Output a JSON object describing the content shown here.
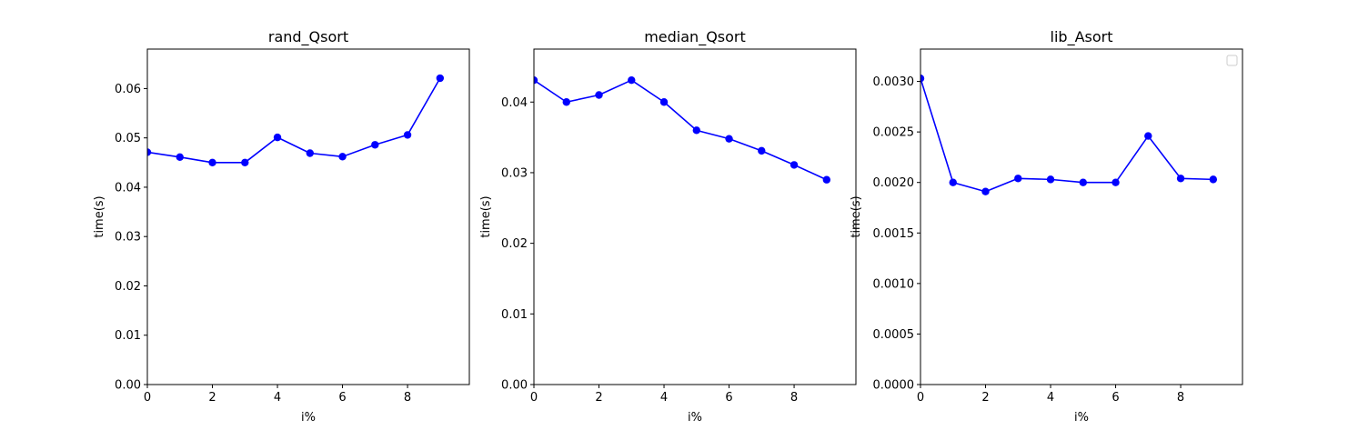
{
  "chart_data": [
    {
      "type": "line",
      "title": "rand_Qsort",
      "xlabel": "i%",
      "ylabel": "time(s)",
      "xlim": [
        0,
        9.9
      ],
      "ylim": [
        0,
        0.068
      ],
      "xticks": [
        0,
        2,
        4,
        6,
        8
      ],
      "xtick_labels": [
        "0",
        "2",
        "4",
        "6",
        "8"
      ],
      "yticks": [
        0,
        0.01,
        0.02,
        0.03,
        0.04,
        0.05,
        0.06
      ],
      "ytick_labels": [
        "0.00",
        "0.01",
        "0.02",
        "0.03",
        "0.04",
        "0.05",
        "0.06"
      ],
      "color": "#0000ff",
      "marker": "circle",
      "x": [
        0,
        1,
        2,
        3,
        4,
        5,
        6,
        7,
        8,
        9
      ],
      "y": [
        0.0471,
        0.0461,
        0.045,
        0.045,
        0.0501,
        0.0469,
        0.0462,
        0.0486,
        0.0506,
        0.0621
      ],
      "grid": false,
      "legend": false
    },
    {
      "type": "line",
      "title": "median_Qsort",
      "xlabel": "i%",
      "ylabel": "time(s)",
      "xlim": [
        0,
        9.9
      ],
      "ylim": [
        0,
        0.0475
      ],
      "xticks": [
        0,
        2,
        4,
        6,
        8
      ],
      "xtick_labels": [
        "0",
        "2",
        "4",
        "6",
        "8"
      ],
      "yticks": [
        0,
        0.01,
        0.02,
        0.03,
        0.04
      ],
      "ytick_labels": [
        "0.00",
        "0.01",
        "0.02",
        "0.03",
        "0.04"
      ],
      "color": "#0000ff",
      "marker": "circle",
      "x": [
        0,
        1,
        2,
        3,
        4,
        5,
        6,
        7,
        8,
        9
      ],
      "y": [
        0.0431,
        0.04,
        0.041,
        0.0431,
        0.04,
        0.036,
        0.0348,
        0.0331,
        0.0311,
        0.029
      ],
      "grid": false,
      "legend": false
    },
    {
      "type": "line",
      "title": "lib_Asort",
      "xlabel": "i%",
      "ylabel": "time(s)",
      "xlim": [
        0,
        9.9
      ],
      "ylim": [
        0,
        0.00332
      ],
      "xticks": [
        0,
        2,
        4,
        6,
        8
      ],
      "xtick_labels": [
        "0",
        "2",
        "4",
        "6",
        "8"
      ],
      "yticks": [
        0,
        0.0005,
        0.001,
        0.0015,
        0.002,
        0.0025,
        0.003
      ],
      "ytick_labels": [
        "0.0000",
        "0.0005",
        "0.0010",
        "0.0015",
        "0.0020",
        "0.0025",
        "0.0030"
      ],
      "color": "#0000ff",
      "marker": "circle",
      "x": [
        0,
        1,
        2,
        3,
        4,
        5,
        6,
        7,
        8,
        9
      ],
      "y": [
        0.00303,
        0.002,
        0.00191,
        0.00204,
        0.00203,
        0.002,
        0.002,
        0.00246,
        0.00204,
        0.00203
      ],
      "grid": false,
      "legend": "top-right (empty)"
    }
  ]
}
